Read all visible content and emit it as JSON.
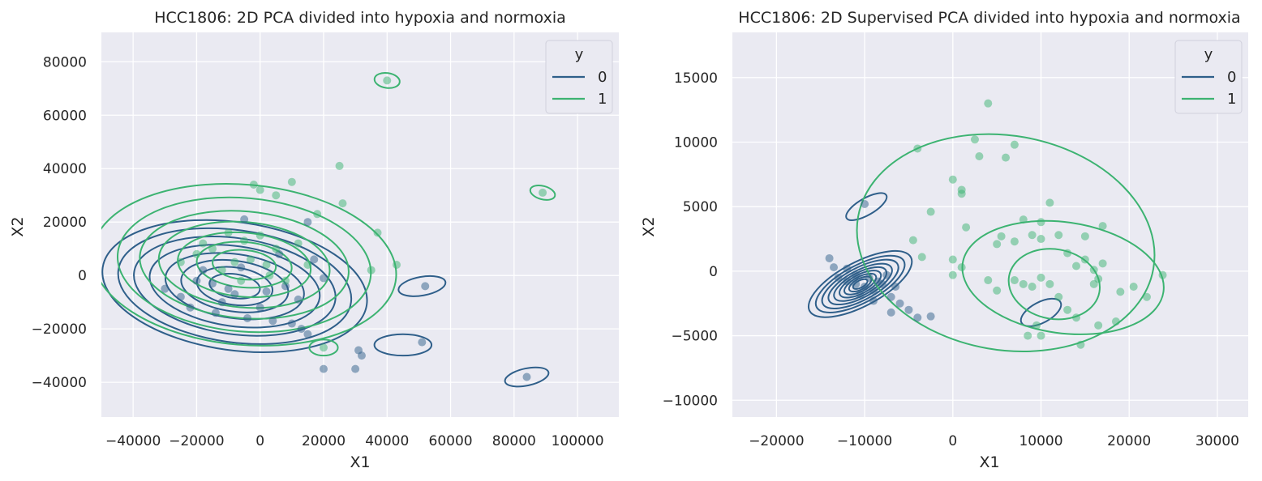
{
  "colors": {
    "background": "#eaeaf2",
    "grid": "#ffffff",
    "y0": "#2f5f8a",
    "y1": "#3cb371"
  },
  "chart_data": [
    {
      "type": "scatter",
      "title": "HCC1806: 2D PCA divided into hypoxia and normoxia",
      "xlabel": "X1",
      "ylabel": "X2",
      "xlim": [
        -50000,
        113000
      ],
      "ylim": [
        -53000,
        91000
      ],
      "xticks": [
        -40000,
        -20000,
        0,
        20000,
        40000,
        60000,
        80000,
        100000
      ],
      "yticks": [
        -40000,
        -20000,
        0,
        20000,
        40000,
        60000,
        80000
      ],
      "xtick_labels": [
        "−40000",
        "−20000",
        "0",
        "20000",
        "40000",
        "60000",
        "80000",
        "100000"
      ],
      "ytick_labels": [
        "−40000",
        "−20000",
        "0",
        "20000",
        "40000",
        "60000",
        "80000"
      ],
      "grid": true,
      "legend": {
        "title": "y",
        "placement": "top-right",
        "entries": [
          "0",
          "1"
        ]
      },
      "overlay": "kde contours per class",
      "series": [
        {
          "name": "0",
          "points": [
            [
              -5000,
              21000
            ],
            [
              15000,
              20000
            ],
            [
              17000,
              6000
            ],
            [
              20000,
              -1000
            ],
            [
              -30000,
              -5000
            ],
            [
              -22000,
              -12000
            ],
            [
              -14000,
              -14000
            ],
            [
              -12000,
              -10000
            ],
            [
              -8000,
              -7000
            ],
            [
              -4000,
              -16000
            ],
            [
              0,
              -12000
            ],
            [
              4000,
              -17000
            ],
            [
              10000,
              -18000
            ],
            [
              13000,
              -20000
            ],
            [
              15000,
              -22000
            ],
            [
              20000,
              -35000
            ],
            [
              30000,
              -35000
            ],
            [
              32000,
              -30000
            ],
            [
              31000,
              -28000
            ],
            [
              51000,
              -25000
            ],
            [
              52000,
              -4000
            ],
            [
              84000,
              -38000
            ],
            [
              -10000,
              -5000
            ],
            [
              -15000,
              -3000
            ],
            [
              -18000,
              2000
            ],
            [
              -6000,
              3000
            ],
            [
              2000,
              -6000
            ],
            [
              8000,
              -4000
            ],
            [
              12000,
              -9000
            ],
            [
              -25000,
              -8000
            ],
            [
              -20000,
              -2000
            ],
            [
              6000,
              8000
            ]
          ]
        },
        {
          "name": "1",
          "points": [
            [
              40000,
              73000
            ],
            [
              89000,
              31000
            ],
            [
              25000,
              41000
            ],
            [
              10000,
              35000
            ],
            [
              -2000,
              34000
            ],
            [
              0,
              32000
            ],
            [
              5000,
              30000
            ],
            [
              18000,
              23000
            ],
            [
              26000,
              27000
            ],
            [
              37000,
              16000
            ],
            [
              43000,
              4000
            ],
            [
              35000,
              2000
            ],
            [
              20000,
              -27000
            ],
            [
              -15000,
              10000
            ],
            [
              -10000,
              16000
            ],
            [
              -5000,
              13000
            ],
            [
              0,
              15000
            ],
            [
              5000,
              10000
            ],
            [
              -8000,
              5000
            ],
            [
              -3000,
              6000
            ],
            [
              2000,
              4000
            ],
            [
              -20000,
              8000
            ],
            [
              -12000,
              2000
            ],
            [
              -6000,
              -2000
            ],
            [
              3000,
              0
            ],
            [
              8000,
              -2000
            ],
            [
              -18000,
              12000
            ],
            [
              -25000,
              5000
            ],
            [
              12000,
              12000
            ],
            [
              15000,
              4000
            ]
          ]
        }
      ]
    },
    {
      "type": "scatter",
      "title": "HCC1806: 2D Supervised PCA divided into hypoxia and normoxia",
      "xlabel": "X1",
      "ylabel": "X2",
      "xlim": [
        -25000,
        33500
      ],
      "ylim": [
        -11300,
        18500
      ],
      "xticks": [
        -20000,
        -10000,
        0,
        10000,
        20000,
        30000
      ],
      "yticks": [
        -10000,
        -5000,
        0,
        5000,
        10000,
        15000
      ],
      "xtick_labels": [
        "−20000",
        "−10000",
        "0",
        "10000",
        "20000",
        "30000"
      ],
      "ytick_labels": [
        "−10000",
        "−5000",
        "0",
        "5000",
        "10000",
        "15000"
      ],
      "grid": true,
      "legend": {
        "title": "y",
        "placement": "top-right",
        "entries": [
          "0",
          "1"
        ]
      },
      "overlay": "kde contours per class",
      "series": [
        {
          "name": "0",
          "points": [
            [
              -10000,
              5200
            ],
            [
              -13000,
              -500
            ],
            [
              -12000,
              -800
            ],
            [
              -11000,
              -1000
            ],
            [
              -10000,
              -1200
            ],
            [
              -9000,
              -1500
            ],
            [
              -8000,
              -1000
            ],
            [
              -7000,
              -2000
            ],
            [
              -6000,
              -2500
            ],
            [
              -5000,
              -3000
            ],
            [
              -4000,
              -3600
            ],
            [
              -2500,
              -3500
            ],
            [
              -12000,
              200
            ],
            [
              -11000,
              -300
            ],
            [
              -9500,
              -500
            ],
            [
              -8500,
              -800
            ],
            [
              -7500,
              -300
            ],
            [
              -6500,
              -1200
            ],
            [
              -14000,
              1000
            ],
            [
              -13500,
              300
            ],
            [
              -10500,
              -1800
            ],
            [
              -9000,
              -2300
            ],
            [
              -7000,
              -3200
            ]
          ]
        },
        {
          "name": "1",
          "points": [
            [
              4000,
              13000
            ],
            [
              7000,
              9800
            ],
            [
              6000,
              8800
            ],
            [
              2500,
              10200
            ],
            [
              3000,
              8900
            ],
            [
              0,
              7100
            ],
            [
              1000,
              6300
            ],
            [
              1000,
              6000
            ],
            [
              -2500,
              4600
            ],
            [
              1500,
              3400
            ],
            [
              -4000,
              9500
            ],
            [
              10000,
              3800
            ],
            [
              8000,
              4000
            ],
            [
              12000,
              2800
            ],
            [
              11000,
              5300
            ],
            [
              5500,
              2700
            ],
            [
              5000,
              2100
            ],
            [
              7000,
              2300
            ],
            [
              9000,
              2800
            ],
            [
              10000,
              2500
            ],
            [
              15000,
              2700
            ],
            [
              17000,
              3500
            ],
            [
              13000,
              1400
            ],
            [
              14000,
              400
            ],
            [
              15000,
              900
            ],
            [
              16000,
              100
            ],
            [
              17000,
              600
            ],
            [
              -4500,
              2400
            ],
            [
              -3500,
              1100
            ],
            [
              0,
              900
            ],
            [
              1000,
              300
            ],
            [
              4000,
              -700
            ],
            [
              5000,
              -1500
            ],
            [
              7000,
              -700
            ],
            [
              8000,
              -1000
            ],
            [
              9000,
              -1200
            ],
            [
              10000,
              -500
            ],
            [
              11000,
              -1000
            ],
            [
              12000,
              -2000
            ],
            [
              13000,
              -3000
            ],
            [
              14000,
              -3600
            ],
            [
              9500,
              -4200
            ],
            [
              8500,
              -5000
            ],
            [
              10000,
              -5000
            ],
            [
              14500,
              -5700
            ],
            [
              16500,
              -4200
            ],
            [
              18500,
              -3900
            ],
            [
              20500,
              -1200
            ],
            [
              22000,
              -2000
            ],
            [
              23800,
              -300
            ],
            [
              16000,
              -1000
            ],
            [
              16500,
              -600
            ],
            [
              19000,
              -1600
            ],
            [
              0,
              -300
            ]
          ]
        }
      ]
    }
  ]
}
